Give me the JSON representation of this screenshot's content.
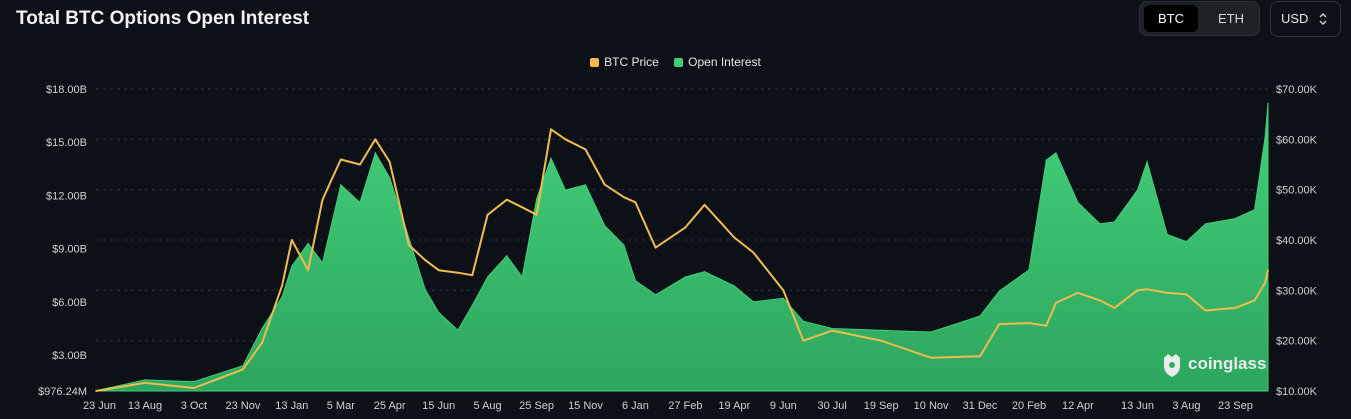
{
  "title": "Total BTC Options Open Interest",
  "controls": {
    "asset_options": [
      "BTC",
      "ETH"
    ],
    "asset_selected": "BTC",
    "currency_value": "USD",
    "currency_icon": "updown-chevron-icon"
  },
  "watermark": {
    "text": "coinglass",
    "icon": "coinglass-logo-icon"
  },
  "colors": {
    "background": "#0d1117",
    "open_interest": "#3fcf78",
    "btc_price": "#f0bc4e",
    "grid": "#2a3038",
    "axis_text": "#d0d0d0"
  },
  "chart_data": {
    "type": "area",
    "title": "Total BTC Options Open Interest",
    "legend": {
      "placement": "top-center",
      "entries": [
        "BTC Price",
        "Open Interest"
      ]
    },
    "grid": true,
    "x_tick_labels": [
      "23 Jun",
      "13 Aug",
      "3 Oct",
      "23 Nov",
      "13 Jan",
      "5 Mar",
      "25 Apr",
      "15 Jun",
      "5 Aug",
      "25 Sep",
      "15 Nov",
      "6 Jan",
      "27 Feb",
      "19 Apr",
      "9 Jun",
      "30 Jul",
      "19 Sep",
      "10 Nov",
      "31 Dec",
      "20 Feb",
      "12 Apr",
      "13 Jun",
      "3 Aug",
      "23 Sep"
    ],
    "y_left": {
      "label": "",
      "ticks": [
        "$976.24M",
        "$3.00B",
        "$6.00B",
        "$9.00B",
        "$12.00B",
        "$15.00B",
        "$18.00B"
      ],
      "tick_values": [
        0.97624,
        3,
        6,
        9,
        12,
        15,
        18
      ],
      "range": [
        0.97624,
        18.0
      ],
      "unit": "USD billions"
    },
    "y_right": {
      "label": "",
      "ticks": [
        "$10.00K",
        "$20.00K",
        "$30.00K",
        "$40.00K",
        "$50.00K",
        "$60.00K",
        "$70.00K"
      ],
      "tick_values": [
        10,
        20,
        30,
        40,
        50,
        60,
        70
      ],
      "range": [
        10,
        70
      ],
      "unit": "USD thousands"
    },
    "series": [
      {
        "name": "Open Interest",
        "axis": "left",
        "kind": "area",
        "points": [
          [
            "23 Jun",
            1.0
          ],
          [
            "13 Aug",
            1.6
          ],
          [
            "3 Oct",
            1.5
          ],
          [
            "23 Nov",
            2.4
          ],
          [
            "13 Dec",
            4.5
          ],
          [
            "3 Jan",
            6.3
          ],
          [
            "13 Jan",
            8.0
          ],
          [
            "30 Jan",
            9.3
          ],
          [
            "14 Feb",
            8.2
          ],
          [
            "5 Mar",
            12.6
          ],
          [
            "25 Mar",
            11.6
          ],
          [
            "10 Apr",
            14.4
          ],
          [
            "25 Apr",
            13.0
          ],
          [
            "15 May",
            9.6
          ],
          [
            "1 Jun",
            6.7
          ],
          [
            "15 Jun",
            5.4
          ],
          [
            "5 Jul",
            4.4
          ],
          [
            "20 Jul",
            5.8
          ],
          [
            "5 Aug",
            7.4
          ],
          [
            "25 Aug",
            8.6
          ],
          [
            "10 Sep",
            7.4
          ],
          [
            "25 Sep",
            11.8
          ],
          [
            "10 Oct",
            14.1
          ],
          [
            "25 Oct",
            12.3
          ],
          [
            "15 Nov",
            12.6
          ],
          [
            "5 Dec",
            10.3
          ],
          [
            "25 Dec",
            9.2
          ],
          [
            "6 Jan",
            7.2
          ],
          [
            "27 Jan",
            6.4
          ],
          [
            "27 Feb",
            7.4
          ],
          [
            "19 Mar",
            7.7
          ],
          [
            "19 Apr",
            6.9
          ],
          [
            "9 May",
            6.0
          ],
          [
            "9 Jun",
            6.2
          ],
          [
            "30 Jun",
            4.9
          ],
          [
            "30 Jul",
            4.5
          ],
          [
            "19 Sep",
            4.4
          ],
          [
            "10 Nov",
            4.3
          ],
          [
            "31 Dec",
            5.2
          ],
          [
            "20 Jan",
            6.6
          ],
          [
            "20 Feb",
            7.8
          ],
          [
            "10 Mar",
            14.0
          ],
          [
            "20 Mar",
            14.4
          ],
          [
            "12 Apr",
            11.6
          ],
          [
            "5 May",
            10.4
          ],
          [
            "20 May",
            10.5
          ],
          [
            "13 Jun",
            12.3
          ],
          [
            "23 Jun",
            13.9
          ],
          [
            "14 Jul",
            9.8
          ],
          [
            "3 Aug",
            9.4
          ],
          [
            "23 Aug",
            10.4
          ],
          [
            "23 Sep",
            10.7
          ],
          [
            "13 Oct",
            11.2
          ],
          [
            "24 Oct",
            15.3
          ],
          [
            "27 Oct",
            17.2
          ]
        ]
      },
      {
        "name": "BTC Price",
        "axis": "right",
        "kind": "line",
        "points": [
          [
            "23 Jun",
            10.0
          ],
          [
            "13 Aug",
            11.6
          ],
          [
            "3 Oct",
            10.6
          ],
          [
            "23 Nov",
            14.3
          ],
          [
            "13 Dec",
            19.6
          ],
          [
            "3 Jan",
            31.0
          ],
          [
            "13 Jan",
            40.0
          ],
          [
            "30 Jan",
            34.0
          ],
          [
            "14 Feb",
            48.0
          ],
          [
            "5 Mar",
            56.0
          ],
          [
            "25 Mar",
            55.0
          ],
          [
            "10 Apr",
            60.0
          ],
          [
            "25 Apr",
            55.5
          ],
          [
            "15 May",
            39.0
          ],
          [
            "1 Jun",
            36.0
          ],
          [
            "15 Jun",
            34.0
          ],
          [
            "5 Jul",
            33.5
          ],
          [
            "20 Jul",
            33.0
          ],
          [
            "5 Aug",
            45.0
          ],
          [
            "25 Aug",
            48.0
          ],
          [
            "10 Sep",
            46.5
          ],
          [
            "25 Sep",
            45.0
          ],
          [
            "10 Oct",
            62.0
          ],
          [
            "25 Oct",
            60.0
          ],
          [
            "15 Nov",
            58.0
          ],
          [
            "5 Dec",
            51.0
          ],
          [
            "25 Dec",
            48.5
          ],
          [
            "6 Jan",
            47.5
          ],
          [
            "27 Jan",
            38.5
          ],
          [
            "27 Feb",
            42.5
          ],
          [
            "19 Mar",
            47.0
          ],
          [
            "19 Apr",
            40.5
          ],
          [
            "9 May",
            37.5
          ],
          [
            "9 Jun",
            30.0
          ],
          [
            "30 Jun",
            20.0
          ],
          [
            "30 Jul",
            22.0
          ],
          [
            "19 Sep",
            20.0
          ],
          [
            "10 Nov",
            16.6
          ],
          [
            "31 Dec",
            16.9
          ],
          [
            "20 Jan",
            23.3
          ],
          [
            "20 Feb",
            23.5
          ],
          [
            "10 Mar",
            23.0
          ],
          [
            "20 Mar",
            27.5
          ],
          [
            "12 Apr",
            29.5
          ],
          [
            "5 May",
            28.0
          ],
          [
            "20 May",
            26.5
          ],
          [
            "13 Jun",
            30.0
          ],
          [
            "23 Jun",
            30.2
          ],
          [
            "14 Jul",
            29.5
          ],
          [
            "3 Aug",
            29.2
          ],
          [
            "23 Aug",
            26.0
          ],
          [
            "23 Sep",
            26.5
          ],
          [
            "13 Oct",
            28.0
          ],
          [
            "24 Oct",
            31.5
          ],
          [
            "27 Oct",
            34.0
          ]
        ]
      }
    ]
  }
}
